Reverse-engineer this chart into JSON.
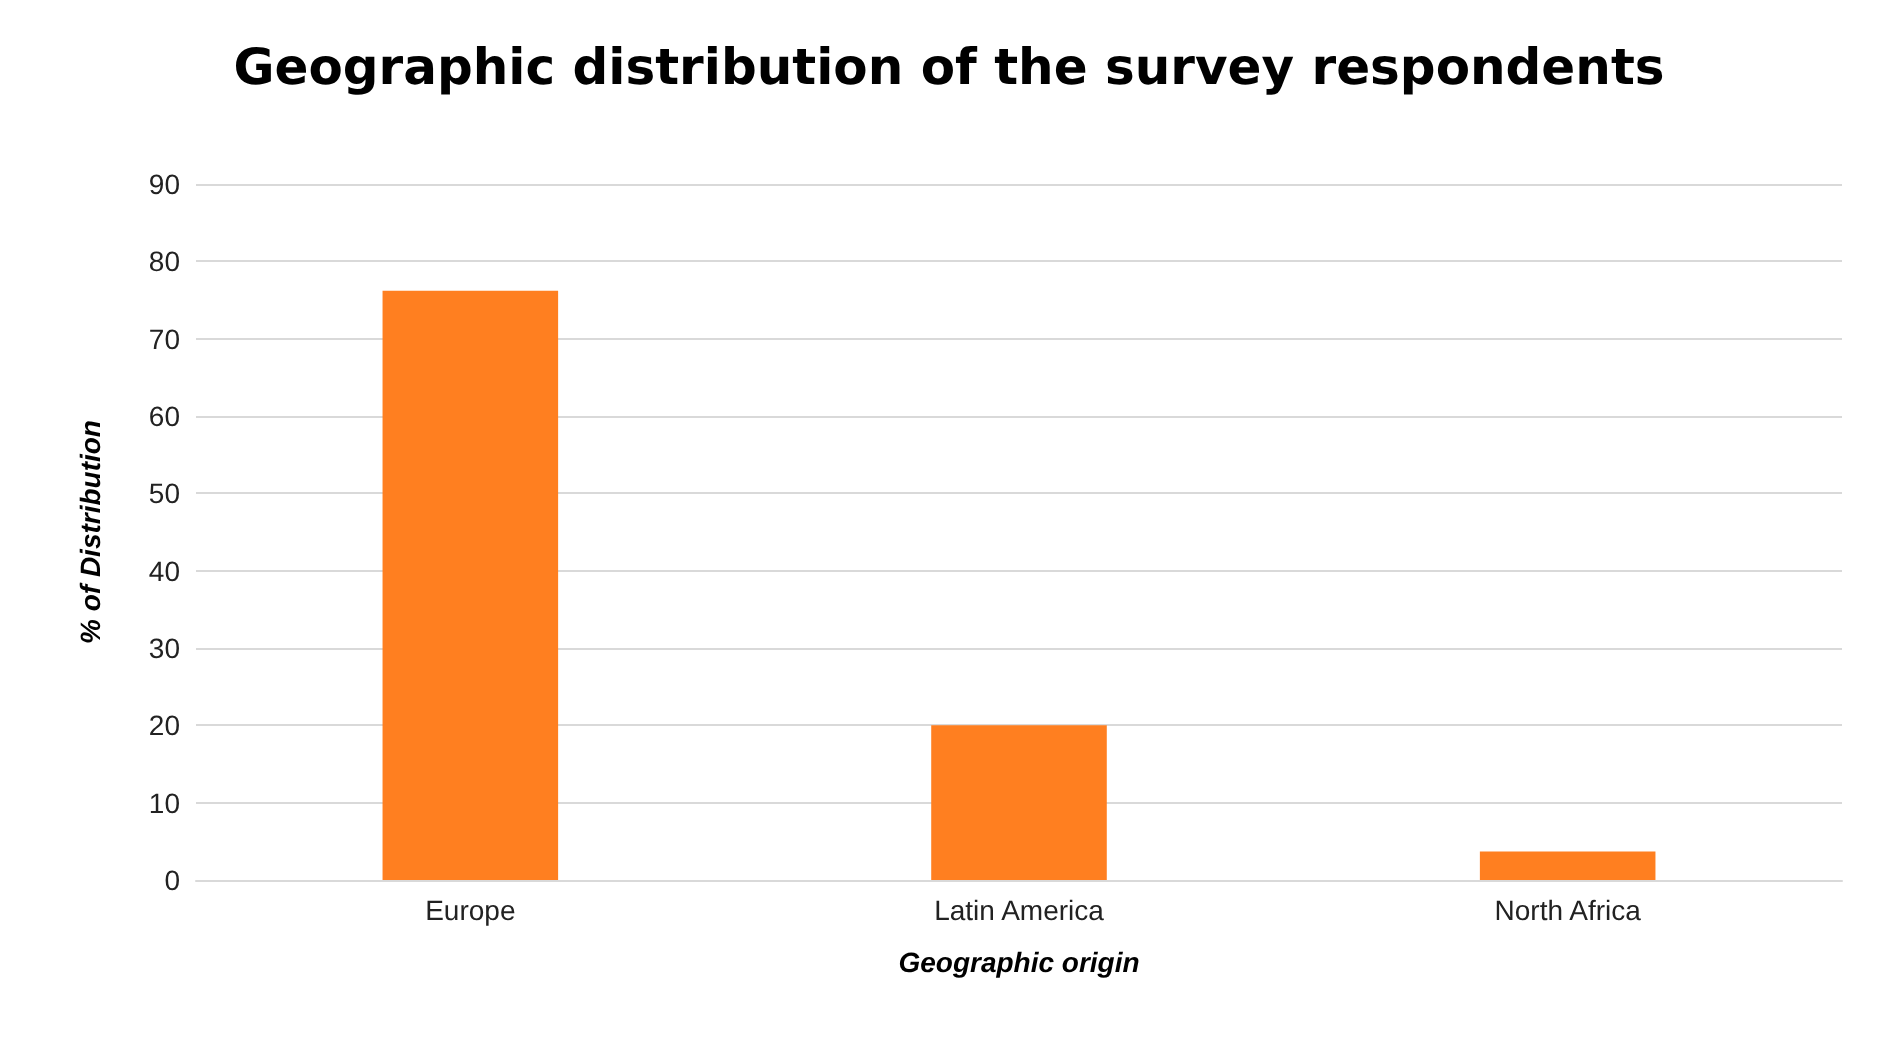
{
  "chart_data": {
    "type": "bar",
    "title": "Geographic distribution of the survey respondents",
    "xlabel": "Geographic origin",
    "ylabel": "% of Distribution",
    "categories": [
      "Europe",
      "Latin America",
      "North Africa"
    ],
    "values": [
      76.2,
      20,
      3.7
    ],
    "color": "#ff7f20",
    "ylim": [
      0,
      90
    ],
    "yticks": [
      0,
      10,
      20,
      30,
      40,
      50,
      60,
      70,
      80,
      90
    ],
    "grid": "y"
  }
}
